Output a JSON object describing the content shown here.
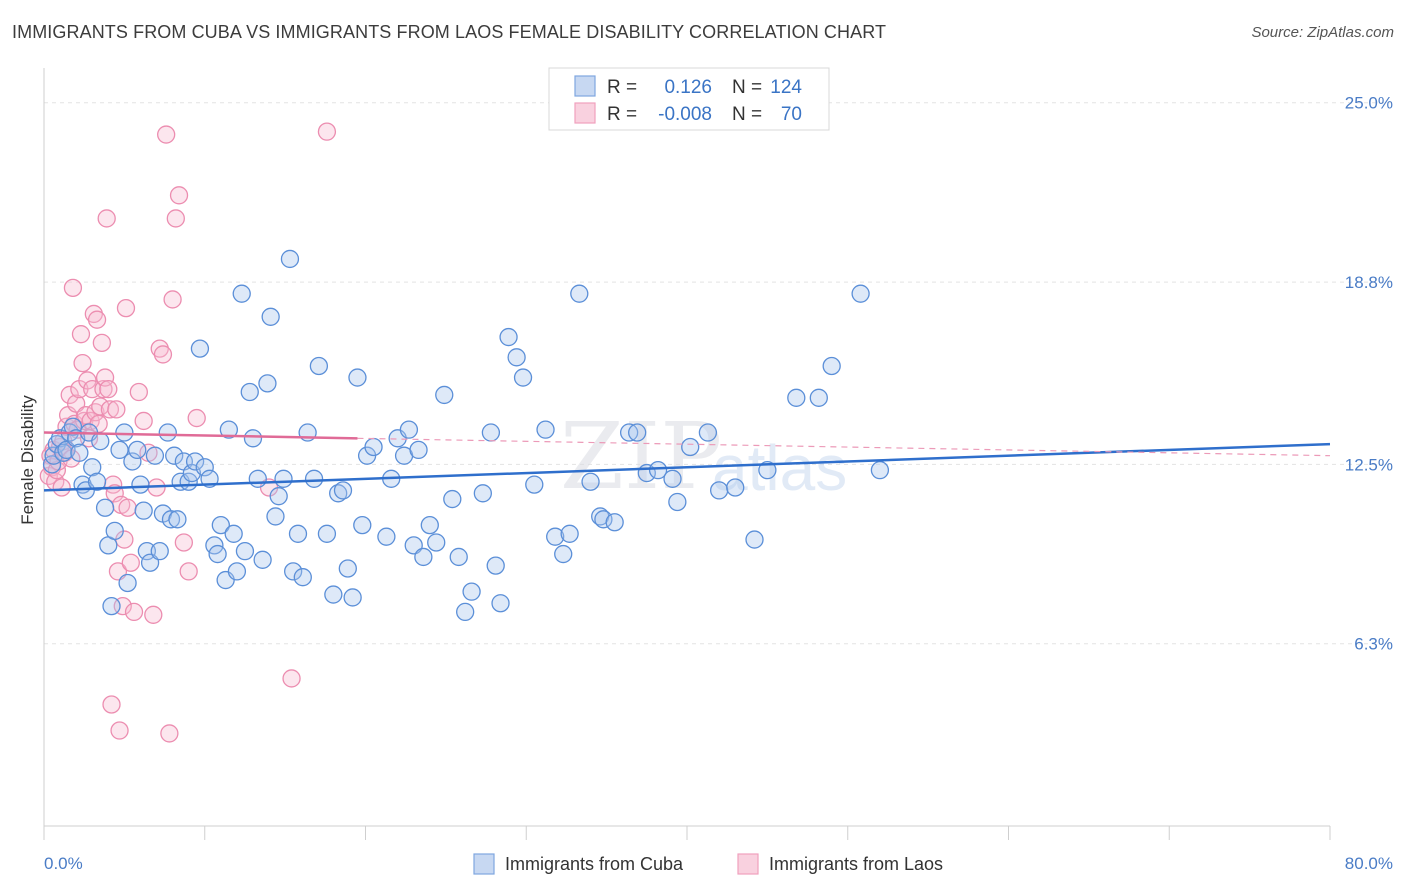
{
  "title": "IMMIGRANTS FROM CUBA VS IMMIGRANTS FROM LAOS FEMALE DISABILITY CORRELATION CHART",
  "source": "Source: ZipAtlas.com",
  "watermark": {
    "zip": "ZIP",
    "atlas": "atlas"
  },
  "legend": {
    "rows": [
      {
        "r_label": "R =",
        "r_value": "0.126",
        "n_label": "N =",
        "n_value": "124",
        "color": "#7fa6e0"
      },
      {
        "r_label": "R =",
        "r_value": "-0.008",
        "n_label": "N =",
        "n_value": "70",
        "color": "#f0a1bd"
      }
    ]
  },
  "bottom_legend": [
    {
      "label": "Immigrants from Cuba",
      "color": "#7fa6e0"
    },
    {
      "label": "Immigrants from Laos",
      "color": "#f0a1bd"
    }
  ],
  "chart_data": {
    "type": "scatter",
    "title": "IMMIGRANTS FROM CUBA VS IMMIGRANTS FROM LAOS FEMALE DISABILITY CORRELATION CHART",
    "xlabel": "",
    "ylabel": "Female Disability",
    "xlim": [
      0,
      80
    ],
    "ylim": [
      0,
      26.2
    ],
    "x_tick_labels": [
      "0.0%",
      "80.0%"
    ],
    "y_ticks": [
      6.3,
      12.5,
      18.8,
      25.0
    ],
    "y_tick_labels": [
      "6.3%",
      "12.5%",
      "18.8%",
      "25.0%"
    ],
    "grid": "horizontal dashed",
    "legend_position": "top-center",
    "series": [
      {
        "name": "Immigrants from Cuba",
        "color": "#5b8fd8",
        "trend": {
          "x0": 0,
          "y0": 11.6,
          "x1": 80,
          "y1": 13.2,
          "dashed_from": null
        },
        "points": [
          [
            0.5,
            12.5
          ],
          [
            0.6,
            12.8
          ],
          [
            0.8,
            13.2
          ],
          [
            1.0,
            13.4
          ],
          [
            1.2,
            12.9
          ],
          [
            1.4,
            13.0
          ],
          [
            1.6,
            13.6
          ],
          [
            1.8,
            13.8
          ],
          [
            2.0,
            13.4
          ],
          [
            2.2,
            12.9
          ],
          [
            2.4,
            11.8
          ],
          [
            2.6,
            11.6
          ],
          [
            2.8,
            13.6
          ],
          [
            3.0,
            12.4
          ],
          [
            3.3,
            11.9
          ],
          [
            3.5,
            13.3
          ],
          [
            3.8,
            11.0
          ],
          [
            4.0,
            9.7
          ],
          [
            4.2,
            7.6
          ],
          [
            4.4,
            10.2
          ],
          [
            4.7,
            13.0
          ],
          [
            5.0,
            13.6
          ],
          [
            5.2,
            8.4
          ],
          [
            5.5,
            12.6
          ],
          [
            5.8,
            13.0
          ],
          [
            6.0,
            11.8
          ],
          [
            6.2,
            10.9
          ],
          [
            6.4,
            9.5
          ],
          [
            6.6,
            9.1
          ],
          [
            6.9,
            12.8
          ],
          [
            7.2,
            9.5
          ],
          [
            7.4,
            10.8
          ],
          [
            7.7,
            13.6
          ],
          [
            7.9,
            10.6
          ],
          [
            8.1,
            12.8
          ],
          [
            8.3,
            10.6
          ],
          [
            8.5,
            11.9
          ],
          [
            8.7,
            12.6
          ],
          [
            9.0,
            11.9
          ],
          [
            9.2,
            12.2
          ],
          [
            9.4,
            12.6
          ],
          [
            9.7,
            16.5
          ],
          [
            10.0,
            12.4
          ],
          [
            10.3,
            12.0
          ],
          [
            10.6,
            9.7
          ],
          [
            10.8,
            9.4
          ],
          [
            11.0,
            10.4
          ],
          [
            11.3,
            8.5
          ],
          [
            11.5,
            13.7
          ],
          [
            11.8,
            10.1
          ],
          [
            12.0,
            8.8
          ],
          [
            12.3,
            18.4
          ],
          [
            12.5,
            9.5
          ],
          [
            12.8,
            15.0
          ],
          [
            13.0,
            13.4
          ],
          [
            13.3,
            12.0
          ],
          [
            13.6,
            9.2
          ],
          [
            13.9,
            15.3
          ],
          [
            14.1,
            17.6
          ],
          [
            14.4,
            10.7
          ],
          [
            14.6,
            11.4
          ],
          [
            14.9,
            12.0
          ],
          [
            15.3,
            19.6
          ],
          [
            15.5,
            8.8
          ],
          [
            15.8,
            10.1
          ],
          [
            16.1,
            8.6
          ],
          [
            16.4,
            13.6
          ],
          [
            16.8,
            12.0
          ],
          [
            17.1,
            15.9
          ],
          [
            17.6,
            10.1
          ],
          [
            18.0,
            8.0
          ],
          [
            18.3,
            11.5
          ],
          [
            18.6,
            11.6
          ],
          [
            18.9,
            8.9
          ],
          [
            19.2,
            7.9
          ],
          [
            19.5,
            15.5
          ],
          [
            19.8,
            10.4
          ],
          [
            20.1,
            12.8
          ],
          [
            20.5,
            13.1
          ],
          [
            21.3,
            10.0
          ],
          [
            21.6,
            12.0
          ],
          [
            22.0,
            13.4
          ],
          [
            22.4,
            12.8
          ],
          [
            22.7,
            13.7
          ],
          [
            23.0,
            9.7
          ],
          [
            23.3,
            13.0
          ],
          [
            23.6,
            9.3
          ],
          [
            24.0,
            10.4
          ],
          [
            24.4,
            9.8
          ],
          [
            24.9,
            14.9
          ],
          [
            25.4,
            11.3
          ],
          [
            25.8,
            9.3
          ],
          [
            26.2,
            7.4
          ],
          [
            26.6,
            8.1
          ],
          [
            27.3,
            11.5
          ],
          [
            27.8,
            13.6
          ],
          [
            28.1,
            9.0
          ],
          [
            28.4,
            7.7
          ],
          [
            28.9,
            16.9
          ],
          [
            29.4,
            16.2
          ],
          [
            29.8,
            15.5
          ],
          [
            30.5,
            11.8
          ],
          [
            31.2,
            13.7
          ],
          [
            31.8,
            10.0
          ],
          [
            32.3,
            9.4
          ],
          [
            32.7,
            10.1
          ],
          [
            33.3,
            18.4
          ],
          [
            34.0,
            11.9
          ],
          [
            34.6,
            10.7
          ],
          [
            34.8,
            10.6
          ],
          [
            35.5,
            10.5
          ],
          [
            36.4,
            13.6
          ],
          [
            36.9,
            13.6
          ],
          [
            37.5,
            12.2
          ],
          [
            38.2,
            12.3
          ],
          [
            39.1,
            12.0
          ],
          [
            39.4,
            11.2
          ],
          [
            40.2,
            13.1
          ],
          [
            41.3,
            13.6
          ],
          [
            42.0,
            11.6
          ],
          [
            43.0,
            11.7
          ],
          [
            44.2,
            9.9
          ],
          [
            45.0,
            12.3
          ],
          [
            46.8,
            14.8
          ],
          [
            48.2,
            14.8
          ],
          [
            49.0,
            15.9
          ],
          [
            50.8,
            18.4
          ],
          [
            52.0,
            12.3
          ]
        ]
      },
      {
        "name": "Immigrants from Laos",
        "color": "#ec8db0",
        "trend": {
          "x0": 0,
          "y0": 13.6,
          "x1": 19.5,
          "y1": 13.4,
          "dashed_to": {
            "x": 80,
            "y": 12.8
          }
        },
        "points": [
          [
            0.3,
            12.1
          ],
          [
            0.4,
            12.8
          ],
          [
            0.5,
            12.4
          ],
          [
            0.6,
            13.0
          ],
          [
            0.7,
            11.9
          ],
          [
            0.8,
            12.3
          ],
          [
            0.9,
            12.6
          ],
          [
            1.0,
            13.1
          ],
          [
            1.1,
            11.7
          ],
          [
            1.2,
            13.3
          ],
          [
            1.3,
            12.9
          ],
          [
            1.4,
            13.8
          ],
          [
            1.5,
            14.2
          ],
          [
            1.6,
            14.9
          ],
          [
            1.7,
            12.7
          ],
          [
            1.8,
            18.6
          ],
          [
            1.9,
            13.9
          ],
          [
            2.0,
            14.6
          ],
          [
            2.1,
            13.7
          ],
          [
            2.2,
            15.1
          ],
          [
            2.3,
            17.0
          ],
          [
            2.4,
            16.0
          ],
          [
            2.5,
            14.0
          ],
          [
            2.6,
            14.2
          ],
          [
            2.7,
            15.4
          ],
          [
            2.8,
            13.4
          ],
          [
            2.9,
            14.0
          ],
          [
            3.0,
            15.1
          ],
          [
            3.1,
            17.7
          ],
          [
            3.2,
            14.3
          ],
          [
            3.3,
            17.5
          ],
          [
            3.4,
            13.9
          ],
          [
            3.5,
            14.5
          ],
          [
            3.6,
            16.7
          ],
          [
            3.7,
            15.1
          ],
          [
            3.8,
            15.5
          ],
          [
            3.9,
            21.0
          ],
          [
            4.0,
            15.1
          ],
          [
            4.1,
            14.4
          ],
          [
            4.2,
            4.2
          ],
          [
            4.3,
            11.8
          ],
          [
            4.4,
            11.5
          ],
          [
            4.5,
            14.4
          ],
          [
            4.6,
            8.8
          ],
          [
            4.7,
            3.3
          ],
          [
            4.8,
            11.1
          ],
          [
            4.9,
            7.6
          ],
          [
            5.0,
            9.9
          ],
          [
            5.1,
            17.9
          ],
          [
            5.2,
            11.0
          ],
          [
            5.4,
            9.1
          ],
          [
            5.6,
            7.4
          ],
          [
            5.9,
            15.0
          ],
          [
            6.2,
            14.0
          ],
          [
            6.5,
            12.9
          ],
          [
            6.8,
            7.3
          ],
          [
            7.0,
            11.7
          ],
          [
            7.2,
            16.5
          ],
          [
            7.4,
            16.3
          ],
          [
            7.6,
            23.9
          ],
          [
            7.8,
            3.2
          ],
          [
            8.0,
            18.2
          ],
          [
            8.2,
            21.0
          ],
          [
            8.4,
            21.8
          ],
          [
            8.7,
            9.8
          ],
          [
            9.0,
            8.8
          ],
          [
            9.5,
            14.1
          ],
          [
            14.0,
            11.7
          ],
          [
            15.4,
            5.1
          ],
          [
            17.6,
            24.0
          ]
        ]
      }
    ]
  }
}
